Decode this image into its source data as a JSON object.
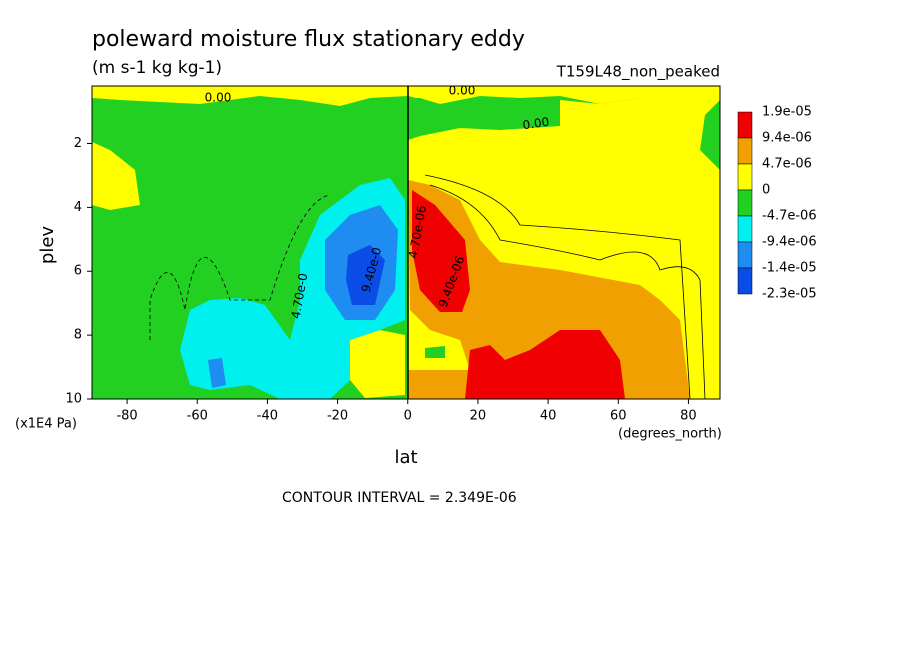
{
  "chart_data": {
    "type": "contour",
    "title": "poleward moisture flux stationary eddy",
    "subtitle": "(m s-1 kg kg-1)",
    "run_label": "T159L48_non_peaked",
    "x_label": "lat",
    "y_label": "plev",
    "x_unit": "(degrees_north)",
    "y_unit": "(x1E4 Pa)",
    "footer": "CONTOUR INTERVAL = 2.349E-06",
    "xlim": [
      -90,
      89
    ],
    "ylim": [
      10,
      0.2
    ],
    "xticks": [
      -80,
      -60,
      -40,
      -20,
      0,
      20,
      40,
      60,
      80
    ],
    "yticks": [
      2,
      4,
      6,
      8,
      10
    ],
    "levels": [
      {
        "value": 1.9e-05,
        "label": "1.9e-05"
      },
      {
        "value": 9.4e-06,
        "label": "9.4e-06"
      },
      {
        "value": 4.7e-06,
        "label": "4.7e-06"
      },
      0,
      {
        "value": -4.7e-06,
        "label": "-4.7e-06"
      },
      {
        "value": -9.4e-06,
        "label": "-9.4e-06"
      },
      {
        "value": -1.4e-05,
        "label": "-1.4e-05"
      },
      {
        "value": -2.3e-05,
        "label": "-2.3e-05"
      }
    ],
    "colors": [
      "#f00000",
      "#f0a000",
      "#ffff00",
      "#22d022",
      "#00f0f0",
      "#1e8cf0",
      "#0a4ce6"
    ],
    "annotations": [
      "0.00",
      "0.00",
      "0.00",
      "4.70e-0",
      "9.40e-0",
      "4.70e-06",
      "9.40e-06"
    ]
  }
}
